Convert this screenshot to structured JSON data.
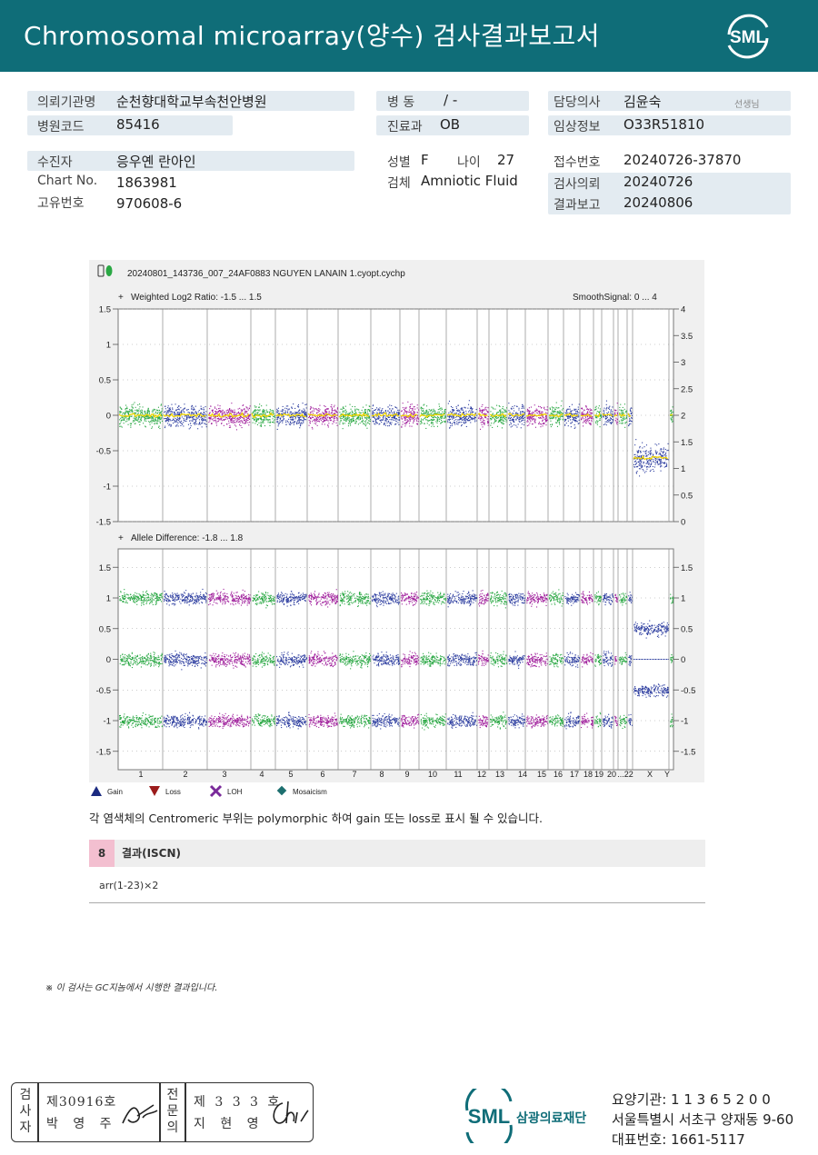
{
  "header": {
    "title": "Chromosomal  microarray(양수) 검사결과보고서",
    "logo_text": "SML"
  },
  "info": {
    "institution": {
      "label": "의뢰기관명",
      "value": "순천향대학교부속천안병원"
    },
    "hospital_code": {
      "label": "병원코드",
      "value": "85416"
    },
    "ward": {
      "label": "병  동",
      "value": "/ -"
    },
    "department": {
      "label": "진료과",
      "value": "OB"
    },
    "doctor": {
      "label": "담당의사",
      "value": "김윤숙",
      "suffix": "선생님"
    },
    "clinical_info": {
      "label": "임상정보",
      "value": "O33R51810"
    },
    "patient": {
      "label": "수진자",
      "value": "응우옌 란아인"
    },
    "chart_no": {
      "label": "Chart No.",
      "value": "1863981"
    },
    "unique_no": {
      "label": "고유번호",
      "value": "970608-6"
    },
    "sex": {
      "label": "성별",
      "value": "F"
    },
    "age": {
      "label": "나이",
      "value": "27"
    },
    "specimen": {
      "label": "검체",
      "value": "Amniotic Fluid"
    },
    "receipt_no": {
      "label": "접수번호",
      "value": "20240726-37870"
    },
    "request_date": {
      "label": "검사의뢰",
      "value": "20240726"
    },
    "report_date": {
      "label": "결과보고",
      "value": "20240806"
    }
  },
  "chart_data": {
    "type": "scatter",
    "file_name": "20240801_143736_007_24AF0883 NGUYEN LANAIN 1.cyopt.cychp",
    "panels": [
      {
        "title": "Weighted Log2 Ratio: -1.5 ... 1.5",
        "right_title": "SmoothSignal: 0 ... 4",
        "ylim": [
          -1.5,
          1.5
        ],
        "y_ticks": [
          "1.5",
          "1",
          "0.5",
          "0",
          "-0.5",
          "-1",
          "-1.5"
        ],
        "right_ticks": [
          "4",
          "3.5",
          "3",
          "2.5",
          "2",
          "1.5",
          "1",
          "0.5",
          "0"
        ]
      },
      {
        "title": "Allele Difference: -1.8 ... 1.8",
        "ylim": [
          -1.8,
          1.8
        ],
        "y_ticks": [
          "1.5",
          "1",
          "0.5",
          "0",
          "-0.5",
          "-1",
          "-1.5"
        ],
        "right_ticks": [
          "1.5",
          "1",
          "0.5",
          "0",
          "-0.5",
          "-1",
          "-1.5"
        ]
      }
    ],
    "chromosome_labels": [
      "1",
      "2",
      "3",
      "4",
      "5",
      "6",
      "7",
      "8",
      "9",
      "10",
      "11",
      "12",
      "13",
      "14",
      "15",
      "16",
      "17",
      "18",
      "19",
      "20",
      "...22",
      "X",
      "Y"
    ],
    "legend": [
      "Gain",
      "Loss",
      "LOH",
      "Mosaicism"
    ],
    "colors": {
      "green": "#2aa844",
      "blue": "#2d3ea0",
      "purple": "#a01e9c",
      "yellow": "#f2d600",
      "gain": "#1b2a80",
      "loss": "#9b1b1b",
      "loh": "#7a2a9a",
      "mosaic": "#1d6f6f"
    }
  },
  "note": "각 염색체의 Centromeric 부위는 polymorphic 하여 gain 또는 loss로 표시 될 수 있습니다.",
  "result": {
    "number": "8",
    "title": "결과(ISCN)",
    "text": "arr(1-23)×2"
  },
  "footnote": "※ 이 검사는 GC지놈에서 시행한 결과입니다.",
  "stamp": {
    "label_a": "검사자",
    "line_a": "제30916호",
    "name_a": "박 영 주",
    "label_b": "전문의",
    "line_b": "제 3 3 3 호",
    "name_b": "지 현 영"
  },
  "footer": {
    "org": "삼광의료재단",
    "institution_no": "요양기관: 1 1 3 6 5 2 0 0",
    "address": "서울특별시 서초구 양재동 9-60",
    "phone": "대표번호: 1661-5117"
  }
}
